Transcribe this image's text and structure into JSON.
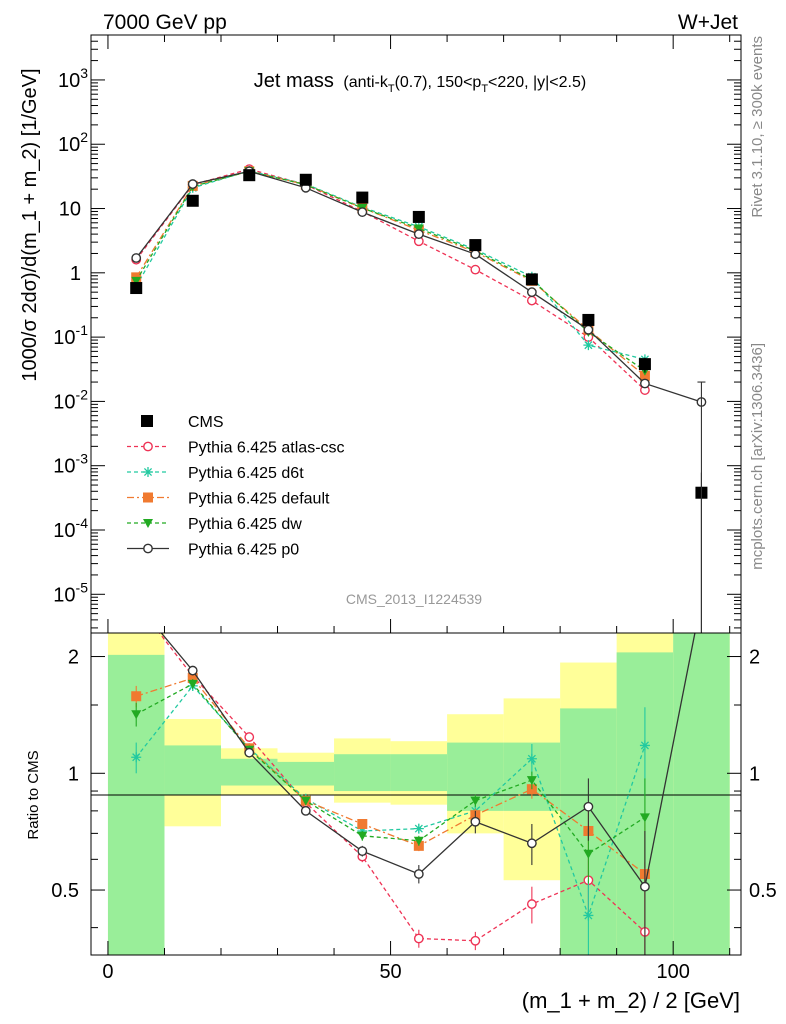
{
  "header": {
    "left_label": "7000 GeV pp",
    "right_label": "W+Jet"
  },
  "side_labels": {
    "right_top": "Rivet 3.1.10, ≥ 300k events",
    "right_bottom": "mcplots.cern.ch [arXiv:1306.3436]"
  },
  "watermark": "CMS_2013_I1224539",
  "chart_data": {
    "type": "scatter",
    "title": {
      "main": "Jet mass",
      "detail_a": "(anti-k",
      "detail_sub_a": "T",
      "detail_b": "(0.7), 150<p",
      "detail_sub_b": "T",
      "detail_c": "<220, |y|<2.5)"
    },
    "xlabel": "(m_1 + m_2) / 2 [GeV]",
    "ylabel": "1000/σ 2dσ)/d(m_1 + m_2) [1/GeV]",
    "ratio_ylabel": "Ratio to CMS",
    "xlim": [
      -3,
      112
    ],
    "ylim": [
      2.5e-06,
      5000
    ],
    "ylog": true,
    "ratio_ylim": [
      0.34,
      2.3
    ],
    "ratio_ylog": true,
    "xticks": [
      0,
      50,
      100
    ],
    "ratio_yticks": [
      {
        "v": 0.5,
        "label": "0.5"
      },
      {
        "v": 1,
        "label": "1"
      },
      {
        "v": 2,
        "label": "2"
      }
    ],
    "yticks": [
      {
        "v": 1e-05,
        "m": "10",
        "e": "-5"
      },
      {
        "v": 0.0001,
        "m": "10",
        "e": "-4"
      },
      {
        "v": 0.001,
        "m": "10",
        "e": "-3"
      },
      {
        "v": 0.01,
        "m": "10",
        "e": "-2"
      },
      {
        "v": 0.1,
        "m": "10",
        "e": "-1"
      },
      {
        "v": 1,
        "m": "1",
        "e": ""
      },
      {
        "v": 10,
        "m": "10",
        "e": ""
      },
      {
        "v": 100,
        "m": "10",
        "e": "2"
      },
      {
        "v": 1000,
        "m": "10",
        "e": "3"
      }
    ],
    "data": {
      "name": "CMS",
      "bins": [
        [
          0,
          10
        ],
        [
          10,
          20
        ],
        [
          20,
          30
        ],
        [
          30,
          40
        ],
        [
          40,
          50
        ],
        [
          50,
          60
        ],
        [
          60,
          70
        ],
        [
          70,
          80
        ],
        [
          80,
          90
        ],
        [
          90,
          100
        ],
        [
          100,
          110
        ]
      ],
      "x": [
        5,
        15,
        25,
        35,
        45,
        55,
        65,
        75,
        85,
        95,
        105
      ],
      "y": [
        0.58,
        13.2,
        33,
        28,
        14.8,
        7.4,
        2.7,
        0.79,
        0.185,
        0.038,
        0.00038
      ],
      "yerr": [
        0.1,
        1.0,
        2.0,
        1.5,
        0.8,
        0.4,
        0.2,
        0.08,
        0.03,
        0.01,
        0.0004
      ]
    },
    "bands": {
      "yellow": [
        [
          0.35,
          2.3
        ],
        [
          0.73,
          1.38
        ],
        [
          0.88,
          1.16
        ],
        [
          0.88,
          1.13
        ],
        [
          0.84,
          1.23
        ],
        [
          0.83,
          1.21
        ],
        [
          0.7,
          1.42
        ],
        [
          0.53,
          1.56
        ],
        [
          0.34,
          1.93
        ],
        [
          0.34,
          2.3
        ],
        [
          0.34,
          2.3
        ]
      ],
      "green": [
        [
          0.34,
          2.02
        ],
        [
          0.88,
          1.18
        ],
        [
          0.93,
          1.09
        ],
        [
          0.93,
          1.07
        ],
        [
          0.9,
          1.12
        ],
        [
          0.9,
          1.12
        ],
        [
          0.8,
          1.2
        ],
        [
          0.8,
          1.2
        ],
        [
          0.34,
          1.47
        ],
        [
          0.34,
          2.05
        ],
        [
          0.34,
          2.3
        ]
      ]
    },
    "series": [
      {
        "name": "Pythia 6.425 atlas-csc",
        "color": "#ee3355",
        "dash": "4,3",
        "marker": "circle-open",
        "x": [
          5,
          15,
          25,
          35,
          45,
          55,
          65,
          75,
          85,
          95
        ],
        "y": [
          1.6,
          23.5,
          41,
          23.5,
          9.0,
          3.1,
          1.12,
          0.37,
          0.1,
          0.015
        ],
        "ratio": [
          2.75,
          1.78,
          1.24,
          0.84,
          0.61,
          0.375,
          0.37,
          0.46,
          0.53,
          0.39
        ],
        "ratio_err": [
          0,
          0.05,
          0.03,
          0.02,
          0.02,
          0.02,
          0.02,
          0.05,
          0.1,
          0.2
        ]
      },
      {
        "name": "Pythia 6.425 d6t",
        "color": "#22c9a0",
        "dash": "4,3",
        "marker": "star",
        "x": [
          5,
          15,
          25,
          35,
          45,
          55,
          65,
          75,
          85,
          95
        ],
        "y": [
          0.62,
          21,
          38.5,
          24,
          10.5,
          5.2,
          2.3,
          0.87,
          0.075,
          0.045
        ],
        "ratio": [
          1.1,
          1.68,
          1.16,
          0.86,
          0.71,
          0.72,
          0.8,
          1.09,
          0.43,
          1.18
        ],
        "ratio_err": [
          0.1,
          0.05,
          0.03,
          0.02,
          0.02,
          0.02,
          0.03,
          0.1,
          0.1,
          0.3
        ]
      },
      {
        "name": "Pythia 6.425 default",
        "color": "#f07a30",
        "dash": "7,3,2,3",
        "marker": "square",
        "x": [
          5,
          15,
          25,
          35,
          45,
          55,
          65,
          75,
          85,
          95
        ],
        "y": [
          0.85,
          22.5,
          38,
          23.5,
          10.2,
          4.6,
          2.1,
          0.75,
          0.13,
          0.025
        ],
        "ratio": [
          1.58,
          1.76,
          1.16,
          0.85,
          0.74,
          0.65,
          0.78,
          0.91,
          0.71,
          0.55
        ],
        "ratio_err": [
          0.1,
          0.05,
          0.03,
          0.02,
          0.02,
          0.02,
          0.03,
          0.05,
          0.1,
          0.2
        ]
      },
      {
        "name": "Pythia 6.425 dw",
        "color": "#22aa22",
        "dash": "4,3",
        "marker": "triangle-down",
        "x": [
          5,
          15,
          25,
          35,
          45,
          55,
          65,
          75,
          85,
          95
        ],
        "y": [
          0.75,
          22,
          38,
          23.5,
          10.2,
          4.9,
          2.2,
          0.78,
          0.12,
          0.03
        ],
        "ratio": [
          1.42,
          1.7,
          1.15,
          0.85,
          0.69,
          0.67,
          0.85,
          0.96,
          0.62,
          0.77
        ],
        "ratio_err": [
          0.1,
          0.05,
          0.03,
          0.02,
          0.02,
          0.02,
          0.03,
          0.05,
          0.1,
          0.2
        ]
      },
      {
        "name": "Pythia 6.425 p0",
        "color": "#333333",
        "dash": "",
        "marker": "circle-open",
        "x": [
          5,
          15,
          25,
          35,
          45,
          55,
          65,
          75,
          85,
          95,
          105
        ],
        "y": [
          1.7,
          24,
          38,
          21,
          8.8,
          4.0,
          1.95,
          0.5,
          0.13,
          0.019,
          0.0098
        ],
        "ratio": [
          2.75,
          1.84,
          1.13,
          0.8,
          0.63,
          0.55,
          0.75,
          0.66,
          0.82,
          0.51,
          2.8
        ],
        "ratio_err": [
          0,
          0.05,
          0.03,
          0.02,
          0.02,
          0.03,
          0.05,
          0.08,
          0.15,
          0.2,
          0
        ]
      }
    ]
  }
}
